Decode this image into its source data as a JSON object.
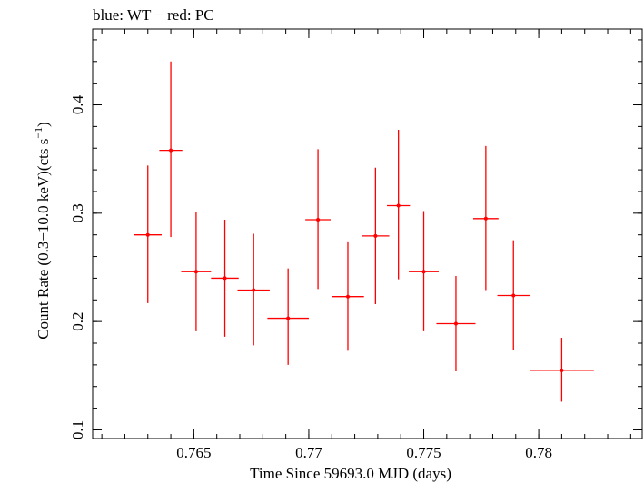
{
  "chart_data": {
    "type": "scatter",
    "title": "blue: WT − red: PC",
    "xlabel": "Time Since 59693.0 MJD (days)",
    "ylabel_main": "Count Rate (0.3−10.0 keV)(cts s",
    "ylabel_sup": "−1",
    "ylabel_end": ")",
    "xlim": [
      0.7606,
      0.7845
    ],
    "ylim": [
      0.092,
      0.47
    ],
    "x_ticks": [
      {
        "value": 0.765,
        "label": "0.765"
      },
      {
        "value": 0.77,
        "label": "0.77"
      },
      {
        "value": 0.775,
        "label": "0.775"
      },
      {
        "value": 0.78,
        "label": "0.78"
      }
    ],
    "y_ticks": [
      {
        "value": 0.1,
        "label": "0.1"
      },
      {
        "value": 0.2,
        "label": "0.2"
      },
      {
        "value": 0.3,
        "label": "0.3"
      },
      {
        "value": 0.4,
        "label": "0.4"
      }
    ],
    "x_minor_step": 0.001,
    "y_minor_step": 0.02,
    "grid": false,
    "series": [
      {
        "name": "PC",
        "color": "#ff0000",
        "points": [
          {
            "x": 0.763,
            "xerr": 0.0006,
            "y": 0.28,
            "ylo": 0.217,
            "yhi": 0.344
          },
          {
            "x": 0.764,
            "xerr": 0.0005,
            "y": 0.358,
            "ylo": 0.278,
            "yhi": 0.44
          },
          {
            "x": 0.7651,
            "xerr": 0.00065,
            "y": 0.246,
            "ylo": 0.191,
            "yhi": 0.301
          },
          {
            "x": 0.76635,
            "xerr": 0.0006,
            "y": 0.24,
            "ylo": 0.186,
            "yhi": 0.294
          },
          {
            "x": 0.7676,
            "xerr": 0.0007,
            "y": 0.229,
            "ylo": 0.178,
            "yhi": 0.281
          },
          {
            "x": 0.7691,
            "xerr": 0.0009,
            "y": 0.203,
            "ylo": 0.16,
            "yhi": 0.249
          },
          {
            "x": 0.7704,
            "xerr": 0.00055,
            "y": 0.294,
            "ylo": 0.23,
            "yhi": 0.359
          },
          {
            "x": 0.7717,
            "xerr": 0.0007,
            "y": 0.223,
            "ylo": 0.173,
            "yhi": 0.274
          },
          {
            "x": 0.7729,
            "xerr": 0.0006,
            "y": 0.279,
            "ylo": 0.216,
            "yhi": 0.342
          },
          {
            "x": 0.7739,
            "xerr": 0.0005,
            "y": 0.307,
            "ylo": 0.239,
            "yhi": 0.377
          },
          {
            "x": 0.775,
            "xerr": 0.00065,
            "y": 0.246,
            "ylo": 0.191,
            "yhi": 0.302
          },
          {
            "x": 0.7764,
            "xerr": 0.00085,
            "y": 0.198,
            "ylo": 0.154,
            "yhi": 0.242
          },
          {
            "x": 0.7777,
            "xerr": 0.00055,
            "y": 0.295,
            "ylo": 0.229,
            "yhi": 0.362
          },
          {
            "x": 0.7789,
            "xerr": 0.0007,
            "y": 0.224,
            "ylo": 0.174,
            "yhi": 0.275
          },
          {
            "x": 0.781,
            "xerr": 0.0014,
            "y": 0.155,
            "ylo": 0.126,
            "yhi": 0.185
          }
        ]
      }
    ]
  }
}
